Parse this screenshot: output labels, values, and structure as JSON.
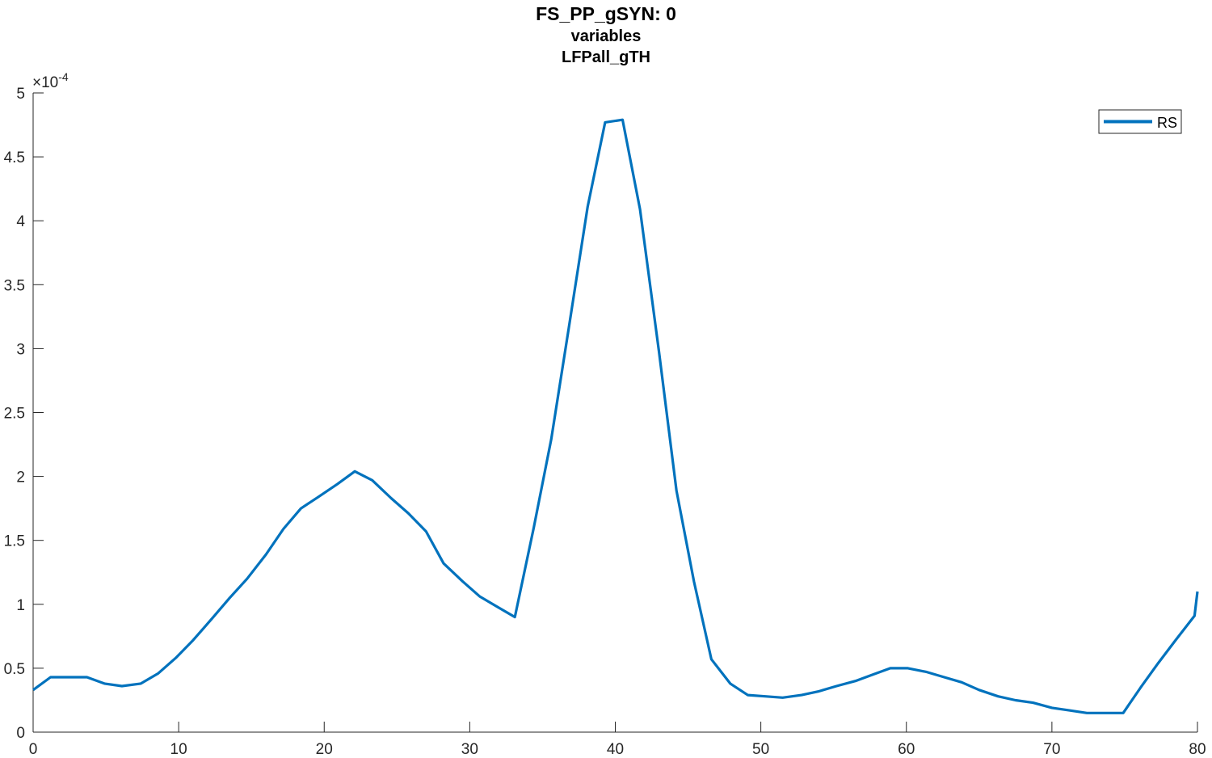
{
  "titles": [
    "FS_PP_gSYN: 0",
    "variables",
    "LFPall_gTH"
  ],
  "chart_data": {
    "type": "line",
    "title": "FS_PP_gSYN: 0",
    "subtitle": [
      "variables",
      "LFPall_gTH"
    ],
    "xlabel": "",
    "ylabel": "",
    "xlim": [
      0,
      80
    ],
    "ylim": [
      0,
      0.0005
    ],
    "y_exponent_label": "×10",
    "y_exponent_power": "-4",
    "xticks": [
      0,
      10,
      20,
      30,
      40,
      50,
      60,
      70,
      80
    ],
    "xtick_labels": [
      "0",
      "10",
      "20",
      "30",
      "40",
      "50",
      "60",
      "70",
      "80"
    ],
    "yticks": [
      0,
      0.5,
      1,
      1.5,
      2,
      2.5,
      3,
      3.5,
      4,
      4.5,
      5
    ],
    "ytick_labels": [
      "0",
      "0.5",
      "1",
      "1.5",
      "2",
      "2.5",
      "3",
      "3.5",
      "4",
      "4.5",
      "5"
    ],
    "grid": false,
    "legend_placement": "top-right",
    "series": [
      {
        "name": "RS",
        "color": "#0072BD",
        "x": [
          0,
          1.2,
          2.4,
          3.7,
          4.9,
          6.1,
          7.4,
          8.6,
          9.8,
          11.0,
          12.3,
          13.5,
          14.7,
          16.0,
          17.2,
          18.4,
          19.6,
          20.9,
          22.1,
          23.3,
          24.6,
          25.8,
          27.0,
          28.2,
          29.5,
          30.7,
          31.9,
          33.1,
          34.4,
          35.6,
          36.8,
          38.1,
          39.3,
          40.5,
          41.7,
          43.0,
          44.2,
          45.4,
          46.6,
          47.9,
          49.1,
          50.3,
          51.5,
          52.8,
          54.0,
          55.2,
          56.5,
          57.7,
          58.9,
          60.1,
          61.4,
          62.6,
          63.8,
          65.0,
          66.3,
          67.5,
          68.7,
          70.0,
          71.2,
          72.4,
          73.6,
          74.9,
          76.1,
          77.3,
          78.5,
          79.8,
          80
        ],
        "y": [
          3.3e-05,
          4.3e-05,
          4.3e-05,
          4.3e-05,
          3.8e-05,
          3.6e-05,
          3.8e-05,
          4.6e-05,
          5.8e-05,
          7.2e-05,
          8.9e-05,
          0.000105,
          0.00012,
          0.000139,
          0.000159,
          0.000175,
          0.000184,
          0.000194,
          0.000204,
          0.000197,
          0.000183,
          0.000171,
          0.000157,
          0.000132,
          0.000118,
          0.000106,
          9.8e-05,
          9e-05,
          0.00016,
          0.000229,
          0.000316,
          0.000411,
          0.000477,
          0.000479,
          0.000409,
          0.000298,
          0.000189,
          0.000118,
          5.7e-05,
          3.8e-05,
          2.9e-05,
          2.8e-05,
          2.7e-05,
          2.9e-05,
          3.2e-05,
          3.6e-05,
          4e-05,
          4.5e-05,
          5e-05,
          5e-05,
          4.7e-05,
          4.3e-05,
          3.9e-05,
          3.3e-05,
          2.8e-05,
          2.5e-05,
          2.3e-05,
          1.9e-05,
          1.7e-05,
          1.5e-05,
          1.5e-05,
          1.5e-05,
          3.5e-05,
          5.4e-05,
          7.2e-05,
          9.1e-05,
          0.00011
        ]
      }
    ]
  }
}
